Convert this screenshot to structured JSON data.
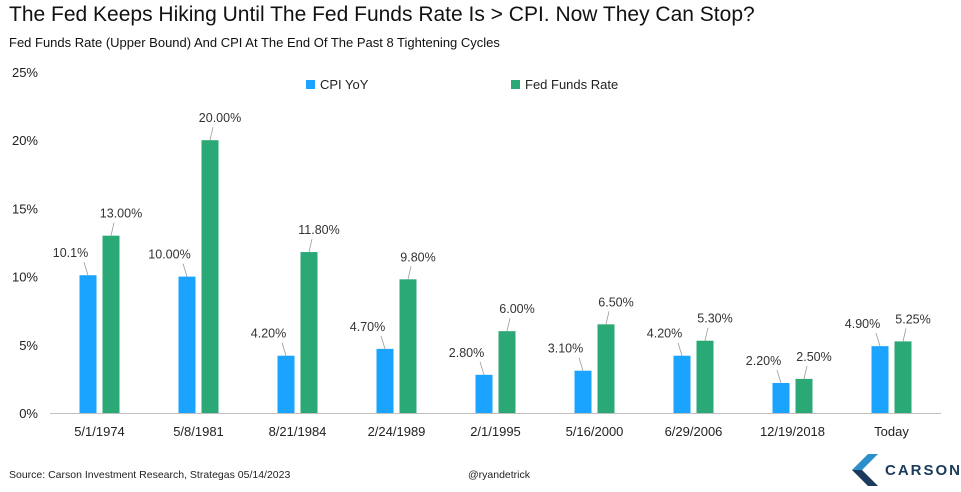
{
  "title": "The Fed Keeps Hiking Until The Fed Funds Rate Is > CPI. Now They Can Stop?",
  "subtitle": "Fed Funds Rate (Upper Bound) And CPI At The End Of The Past 8 Tightening Cycles",
  "source": "Source: Carson Investment Research, Strategas 05/14/2023",
  "handle": "@ryandetrick",
  "logo_text": "CARSON",
  "chart_data": {
    "type": "bar",
    "categories": [
      "5/1/1974",
      "5/8/1981",
      "8/21/1984",
      "2/24/1989",
      "2/1/1995",
      "5/16/2000",
      "6/29/2006",
      "12/19/2018",
      "Today"
    ],
    "series": [
      {
        "name": "CPI YoY",
        "color": "#1aa3ff",
        "values": [
          10.1,
          10.0,
          4.2,
          4.7,
          2.8,
          3.1,
          4.2,
          2.2,
          4.9
        ],
        "labels": [
          "10.1%",
          "10.00%",
          "4.20%",
          "4.70%",
          "2.80%",
          "3.10%",
          "4.20%",
          "2.20%",
          "4.90%"
        ]
      },
      {
        "name": "Fed Funds Rate",
        "color": "#2aa876",
        "values": [
          13.0,
          20.0,
          11.8,
          9.8,
          6.0,
          6.5,
          5.3,
          2.5,
          5.25
        ],
        "labels": [
          "13.00%",
          "20.00%",
          "11.80%",
          "9.80%",
          "6.00%",
          "6.50%",
          "5.30%",
          "2.50%",
          "5.25%"
        ]
      }
    ],
    "yticks": [
      "0%",
      "5%",
      "10%",
      "15%",
      "20%",
      "25%"
    ],
    "ylim": [
      0,
      25
    ],
    "legend_position": "top-center",
    "grid": false
  }
}
